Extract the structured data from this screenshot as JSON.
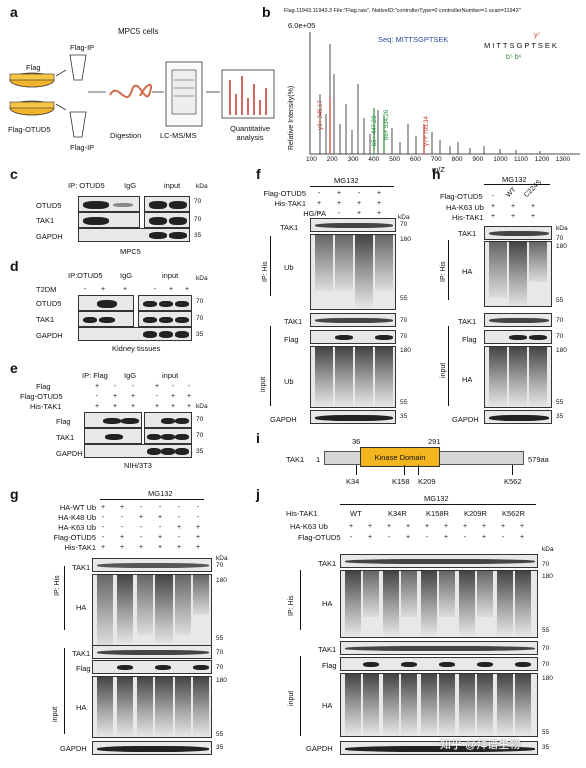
{
  "panels": {
    "a": "a",
    "b": "b",
    "c": "c",
    "d": "d",
    "e": "e",
    "f": "f",
    "g": "g",
    "h": "h",
    "i": "i",
    "j": "j"
  },
  "a": {
    "cells": "MPC5 cells",
    "flag": "Flag",
    "flag_otud5": "Flag-OTUD5",
    "flag_ip_top": "Flag-IP",
    "flag_ip_bottom": "Flag-IP",
    "digestion": "Digestion",
    "lcms": "LC-MS/MS",
    "quant": "Quantitative analysis"
  },
  "b": {
    "header": "Flag.11943.11943.3 File:\"Flag.raw\", NativeID:\"controllerType=0 controllerNumber=1 scan=11943\"",
    "scale": "6.0e+05",
    "seq": "Seq: MITTSGPTSEK",
    "seq_letters": "MITTSGPTSEK",
    "ion_y": "y⁷",
    "ion_b": "b⁵ b⁶",
    "ylabel": "Relative Intensity(%)",
    "xlabel": "m/Z",
    "peak_labels": [
      "b5+ 447.23",
      "b6+ 534.26",
      "y7+ 705.34"
    ],
    "red_label": "y3+ 345.17",
    "xticks": [
      "100",
      "200",
      "300",
      "400",
      "500",
      "600",
      "700",
      "800",
      "900",
      "1000",
      "1100",
      "1200",
      "1300"
    ]
  },
  "c": {
    "ip": "IP: OTUD5",
    "igg": "IgG",
    "input": "input",
    "kda": "kDa",
    "rows": [
      "OTUD5",
      "TAK1",
      "GAPDH"
    ],
    "mw": [
      "70",
      "70",
      "35"
    ],
    "caption": "MPC5"
  },
  "d": {
    "ip": "IP:OTUD5",
    "igg": "IgG",
    "input": "input",
    "t2dm": "T2DM",
    "signs": [
      "-",
      "+",
      "+",
      "-",
      "+",
      "+"
    ],
    "kda": "kDa",
    "rows": [
      "OTUD5",
      "TAK1",
      "GAPDH"
    ],
    "mw": [
      "70",
      "70",
      "35"
    ],
    "caption": "Kidney tissues"
  },
  "e": {
    "ip": "IP: Flag",
    "igg": "IgG",
    "input": "input",
    "conds": [
      "Flag",
      "Flag-OTUD5",
      "His-TAK1"
    ],
    "signs": [
      [
        "+",
        "-",
        "-",
        "+",
        "-",
        "-"
      ],
      [
        "-",
        "+",
        "+",
        "-",
        "+",
        "+"
      ],
      [
        "+",
        "+",
        "+",
        "+",
        "+",
        "+"
      ]
    ],
    "kda": "kDa",
    "rows": [
      "Flag",
      "TAK1",
      "GAPDH"
    ],
    "mw": [
      "70",
      "70",
      "35"
    ],
    "caption": "NIH/3T3"
  },
  "f": {
    "title": "MG132",
    "conds": [
      "Flag-OTUD5",
      "His-TAK1",
      "HG/PA"
    ],
    "signs": [
      [
        "-",
        "+",
        "-",
        "+"
      ],
      [
        "+",
        "+",
        "+",
        "+"
      ],
      [
        "-",
        "-",
        "+",
        "+"
      ]
    ],
    "kda": "kDa",
    "iphis": "IP: His",
    "input": "input",
    "rows": [
      "TAK1",
      "Ub",
      "TAK1",
      "Flag",
      "Ub",
      "GAPDH"
    ],
    "mw": [
      "70",
      "180",
      "55",
      "70",
      "70",
      "180",
      "55",
      "35"
    ]
  },
  "g": {
    "title": "MG132",
    "conds": [
      "HA-WT Ub",
      "HA-K48 Ub",
      "HA-K63 Ub",
      "Flag-OTUD5",
      "His-TAK1"
    ],
    "signs": [
      [
        "+",
        "+",
        "-",
        "-",
        "-",
        "-"
      ],
      [
        "-",
        "-",
        "+",
        "+",
        "-",
        "-"
      ],
      [
        "-",
        "-",
        "-",
        "-",
        "+",
        "+"
      ],
      [
        "-",
        "+",
        "-",
        "+",
        "-",
        "+"
      ],
      [
        "+",
        "+",
        "+",
        "+",
        "+",
        "+"
      ]
    ],
    "kda": "kDa",
    "iphis": "IP: His",
    "input": "input",
    "rows": [
      "TAK1",
      "HA",
      "TAK1",
      "Flag",
      "HA",
      "GAPDH"
    ],
    "mw": [
      "70",
      "180",
      "55",
      "70",
      "70",
      "180",
      "55",
      "35"
    ]
  },
  "h": {
    "title": "MG132",
    "conds": [
      "Flag-OTUD5",
      "HA-K63 Ub",
      "His-TAK1"
    ],
    "wt": "WT",
    "mut": "C224S",
    "signs": [
      [
        "-",
        "",
        ""
      ],
      [
        "+",
        "+",
        "+"
      ],
      [
        "+",
        "+",
        "+"
      ]
    ],
    "kda": "kDa",
    "iphis": "IP: His",
    "input": "input",
    "rows": [
      "TAK1",
      "HA",
      "TAK1",
      "Flag",
      "HA",
      "GAPDH"
    ],
    "mw": [
      "70",
      "180",
      "55",
      "70",
      "70",
      "180",
      "55",
      "35"
    ]
  },
  "i": {
    "protein": "TAK1",
    "start": "1",
    "end": "579aa",
    "kd_start": "36",
    "kd_end": "291",
    "domain": "Kinase Domain",
    "sites": [
      "K34",
      "K158",
      "K209",
      "K562"
    ],
    "domain_color": "#f3b61f"
  },
  "j": {
    "title": "MG132",
    "his": "His-TAK1",
    "variants": [
      "WT",
      "K34R",
      "K158R",
      "K209R",
      "K562R"
    ],
    "conds": [
      "HA-K63 Ub",
      "Flag-OTUD5"
    ],
    "signs": [
      [
        "+",
        "+",
        "+",
        "+",
        "+",
        "+",
        "+",
        "+",
        "+",
        "+"
      ],
      [
        "-",
        "+",
        "-",
        "+",
        "-",
        "+",
        "-",
        "+",
        "-",
        "+"
      ]
    ],
    "kda": "kDa",
    "iphis": "IP: His",
    "input": "input",
    "rows": [
      "TAK1",
      "HA",
      "TAK1",
      "Flag",
      "HA",
      "GAPDH"
    ],
    "mw": [
      "70",
      "180",
      "55",
      "70",
      "70",
      "180",
      "55",
      "35"
    ]
  },
  "watermark": "知乎 @拜谱生物"
}
